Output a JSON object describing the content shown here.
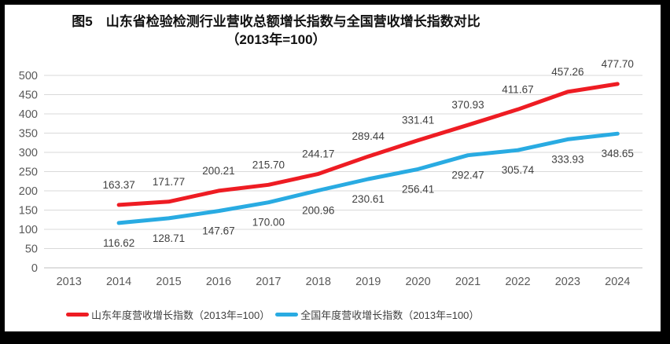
{
  "frame": {
    "border_color": "#000000",
    "background": "#ffffff"
  },
  "chart_data": {
    "type": "line",
    "title": "图5　山东省检验检测行业营收总额增长指数与全国营收增长指数对比",
    "subtitle": "（2013年=100）",
    "categories": [
      "2013",
      "2014",
      "2015",
      "2016",
      "2017",
      "2018",
      "2019",
      "2020",
      "2021",
      "2022",
      "2023",
      "2024"
    ],
    "series": [
      {
        "name": "山东年度营收增长指数（2013年=100）",
        "color": "#ee1c23",
        "label_position": "above",
        "values": [
          null,
          163.37,
          171.77,
          200.21,
          215.7,
          244.17,
          289.44,
          331.41,
          370.93,
          411.67,
          457.26,
          477.7
        ]
      },
      {
        "name": "全国年度营收增长指数（2013年=100）",
        "color": "#29abe2",
        "label_position": "below",
        "values": [
          null,
          116.62,
          128.71,
          147.67,
          170.0,
          200.96,
          230.61,
          256.41,
          292.47,
          305.74,
          333.93,
          348.65
        ]
      }
    ],
    "ylim": [
      0,
      500
    ],
    "ytick_step": 50,
    "ytick_labels": [
      "0",
      "50",
      "100",
      "150",
      "200",
      "250",
      "300",
      "350",
      "400",
      "450",
      "500"
    ],
    "grid": true,
    "legend_position": "bottom",
    "data_label_decimals": 2,
    "colors": {
      "gridline": "#d9d9d9",
      "axis_line": "#bfbfbf",
      "axis_text": "#595959",
      "data_label_text": "#404040",
      "title_text": "#111111"
    }
  }
}
